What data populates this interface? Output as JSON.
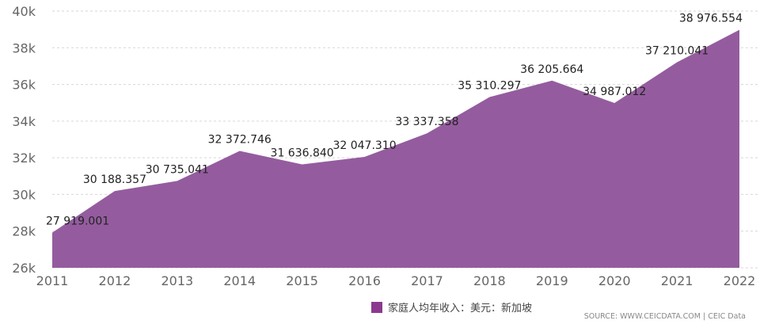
{
  "chart_data": {
    "type": "area",
    "x": [
      "2011",
      "2012",
      "2013",
      "2014",
      "2015",
      "2016",
      "2017",
      "2018",
      "2019",
      "2020",
      "2021",
      "2022"
    ],
    "series": [
      {
        "name": "家庭人均年收入：美元：新加坡",
        "values": [
          27919.001,
          30188.357,
          30735.041,
          32372.746,
          31636.84,
          32047.31,
          33337.358,
          35310.297,
          36205.664,
          34987.012,
          37210.041,
          38976.554
        ],
        "labels": [
          "27 919.001",
          "30 188.357",
          "30 735.041",
          "32 372.746",
          "31 636.840",
          "32 047.310",
          "33 337.358",
          "35 310.297",
          "36 205.664",
          "34 987.012",
          "37 210.041",
          "38 976.554"
        ]
      }
    ],
    "ylim": [
      26000,
      40000
    ],
    "yticks": [
      26000,
      28000,
      30000,
      32000,
      34000,
      36000,
      38000,
      40000
    ],
    "ytick_labels": [
      "26k",
      "28k",
      "30k",
      "32k",
      "34k",
      "36k",
      "38k",
      "40k"
    ],
    "grid": true,
    "legend": "bottom-center",
    "fill_color": "#945c9e",
    "legend_color": "#8b3a8f"
  },
  "footer": {
    "source": "SOURCE: WWW.CEICDATA.COM | CEIC Data"
  }
}
